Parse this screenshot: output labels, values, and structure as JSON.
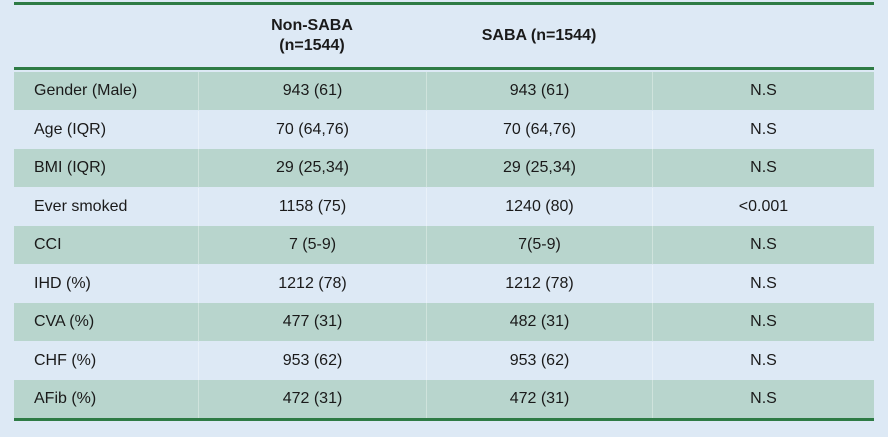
{
  "table": {
    "headers": [
      "",
      "Non-SABA\n(n=1544)",
      "SABA (n=1544)",
      ""
    ],
    "header_line1": "Non-SABA",
    "header_line2": "(n=1544)",
    "header_saba": "SABA (n=1544)",
    "rows": [
      {
        "label": "Gender (Male)",
        "non_saba": "943 (61)",
        "saba": "943 (61)",
        "p": "N.S"
      },
      {
        "label": "Age (IQR)",
        "non_saba": "70 (64,76)",
        "saba": "70 (64,76)",
        "p": "N.S"
      },
      {
        "label": "BMI (IQR)",
        "non_saba": "29 (25,34)",
        "saba": "29 (25,34)",
        "p": "N.S"
      },
      {
        "label": "Ever smoked",
        "non_saba": "1158 (75)",
        "saba": "1240 (80)",
        "p": "<0.001"
      },
      {
        "label": "CCI",
        "non_saba": "7 (5-9)",
        "saba": "7(5-9)",
        "p": "N.S"
      },
      {
        "label": " IHD (%)",
        "non_saba": "1212 (78)",
        "saba": "1212 (78)",
        "p": "N.S"
      },
      {
        "label": "CVA (%)",
        "non_saba": "477 (31)",
        "saba": "482 (31)",
        "p": "N.S"
      },
      {
        "label": "CHF (%)",
        "non_saba": "953 (62)",
        "saba": "953 (62)",
        "p": "N.S"
      },
      {
        "label": "AFib (%)",
        "non_saba": "472 (31)",
        "saba": "472 (31)",
        "p": "N.S"
      }
    ]
  },
  "colors": {
    "background": "#dde9f5",
    "row_shade": "#b8d5cd",
    "rule": "#2e7b45"
  }
}
